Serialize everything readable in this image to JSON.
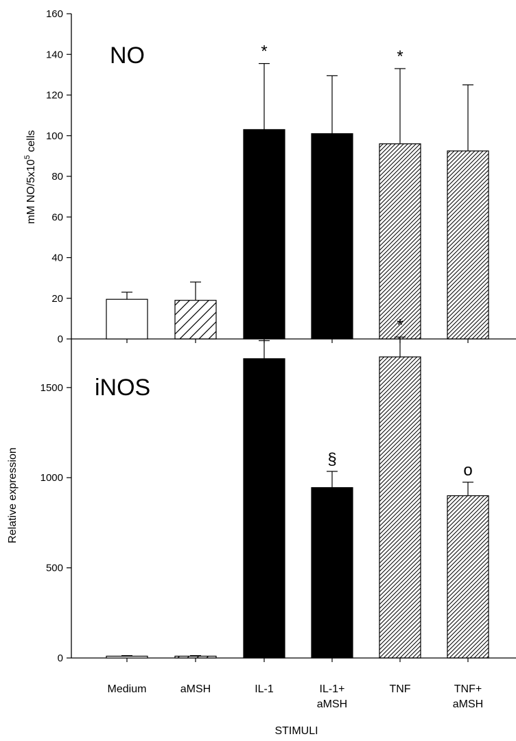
{
  "chart_data": [
    {
      "type": "bar",
      "title": "NO",
      "ylabel_main": "mM NO/5x10",
      "ylabel_sup": "5",
      "ylabel_tail": " cells",
      "ylim": [
        0,
        160
      ],
      "yticks": [
        0,
        20,
        40,
        60,
        80,
        100,
        120,
        140,
        160
      ],
      "categories": [
        "Medium",
        "aMSH",
        "IL-1",
        "IL-1+ aMSH",
        "TNF",
        "TNF+ aMSH"
      ],
      "values": [
        19.5,
        19,
        103,
        101,
        96,
        92.5
      ],
      "errors": [
        3.5,
        9,
        32.5,
        28.5,
        37,
        32.5
      ],
      "fills": [
        "white",
        "sparse-hatch",
        "black",
        "black",
        "dense-hatch",
        "dense-hatch"
      ],
      "annotations": [
        "",
        "",
        "*",
        "",
        "*",
        ""
      ]
    },
    {
      "type": "bar",
      "title": "iNOS",
      "ylabel": "Relative expression",
      "ylim": [
        0,
        1800
      ],
      "yticks": [
        0,
        500,
        1000,
        1500
      ],
      "categories": [
        "Medium",
        "aMSH",
        "IL-1",
        "IL-1+ aMSH",
        "TNF",
        "TNF+ aMSH"
      ],
      "values": [
        10,
        10,
        1660,
        945,
        1670,
        900
      ],
      "errors": [
        3,
        3,
        100,
        90,
        110,
        75
      ],
      "fills": [
        "white",
        "sparse-hatch",
        "black",
        "black",
        "dense-hatch",
        "dense-hatch"
      ],
      "annotations": [
        "",
        "",
        "*",
        "§",
        "*",
        "o"
      ]
    }
  ],
  "x_axis": {
    "label": "STIMULI",
    "categories": [
      [
        "Medium"
      ],
      [
        "aMSH"
      ],
      [
        "IL-1"
      ],
      [
        "IL-1+",
        "aMSH"
      ],
      [
        "TNF"
      ],
      [
        "TNF+",
        "aMSH"
      ]
    ]
  }
}
